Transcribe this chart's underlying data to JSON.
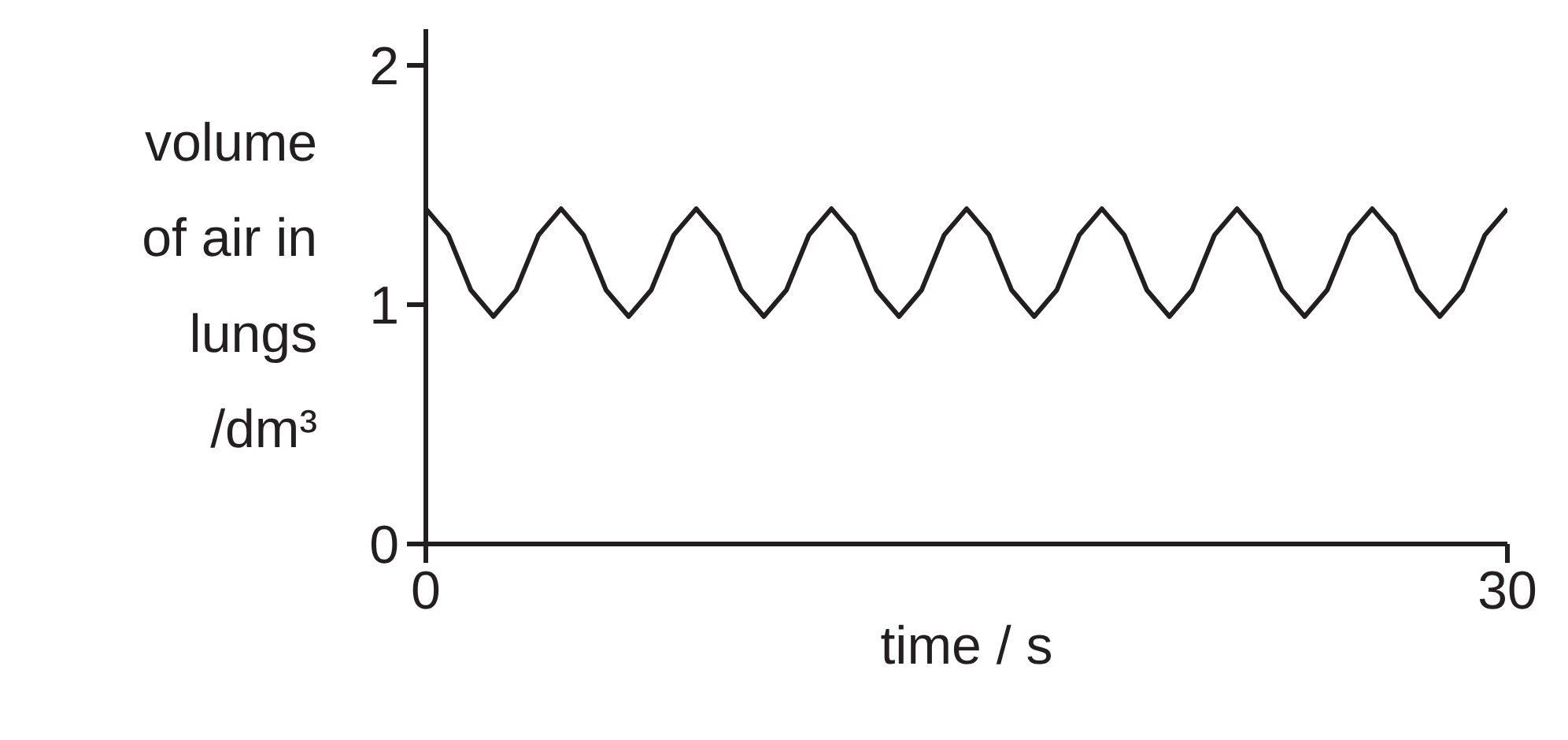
{
  "chart_data": {
    "type": "line",
    "xlabel": "time / s",
    "ylabel": "volume\nof air in\nlungs\n/dm³",
    "xlim": [
      0,
      30
    ],
    "ylim": [
      0,
      2.15
    ],
    "xticks": [
      0,
      30
    ],
    "yticks": [
      0,
      1,
      2
    ],
    "grid": false,
    "x": [
      0,
      0.625,
      1.25,
      1.875,
      2.5,
      3.125,
      3.75,
      4.375,
      5,
      5.625,
      6.25,
      6.875,
      7.5,
      8.125,
      8.75,
      9.375,
      10,
      10.625,
      11.25,
      11.875,
      12.5,
      13.125,
      13.75,
      14.375,
      15,
      15.625,
      16.25,
      16.875,
      17.5,
      18.125,
      18.75,
      19.375,
      20,
      20.625,
      21.25,
      21.875,
      22.5,
      23.125,
      23.75,
      24.375,
      25,
      25.625,
      26.25,
      26.875,
      27.5,
      28.125,
      28.75,
      29.375,
      30
    ],
    "series": [
      {
        "color": "#231f20",
        "values": [
          1.4,
          1.29,
          1.06,
          0.95,
          1.06,
          1.29,
          1.4,
          1.29,
          1.06,
          0.95,
          1.06,
          1.29,
          1.4,
          1.29,
          1.06,
          0.95,
          1.06,
          1.29,
          1.4,
          1.29,
          1.06,
          0.95,
          1.06,
          1.29,
          1.4,
          1.29,
          1.06,
          0.95,
          1.06,
          1.29,
          1.4,
          1.29,
          1.06,
          0.95,
          1.06,
          1.29,
          1.4,
          1.29,
          1.06,
          0.95,
          1.06,
          1.29,
          1.4,
          1.29,
          1.06,
          0.95,
          1.06,
          1.29,
          1.4
        ]
      }
    ]
  }
}
